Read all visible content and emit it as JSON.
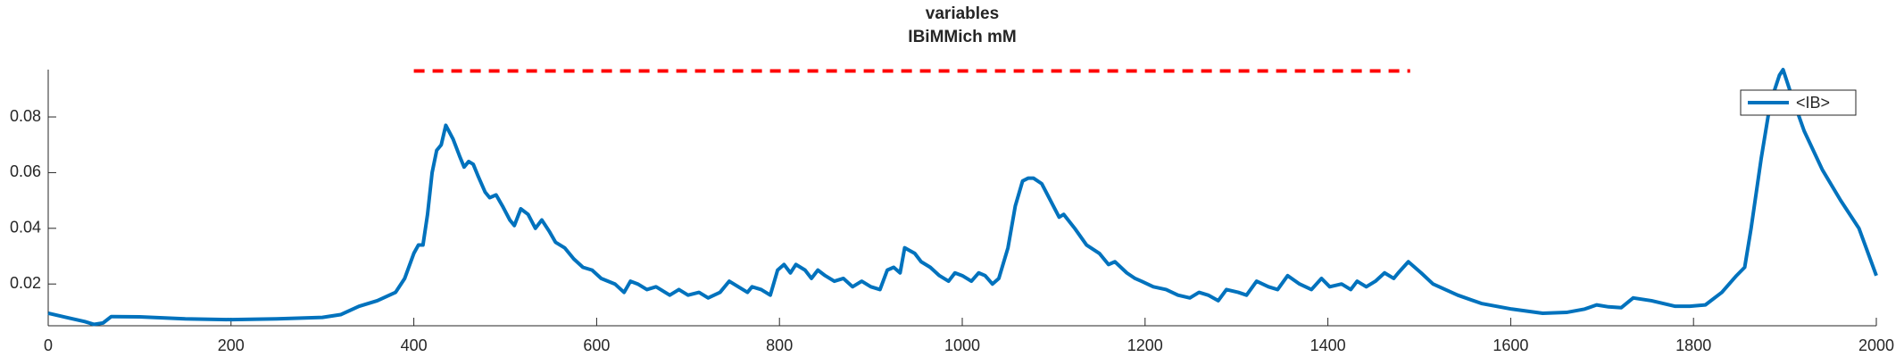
{
  "chart_data": {
    "type": "line",
    "title": "variables",
    "subtitle": "IBiMMich mM",
    "xlim": [
      0,
      2000
    ],
    "xticks": [
      0,
      200,
      400,
      600,
      800,
      1000,
      1200,
      1400,
      1600,
      1800,
      2000
    ],
    "ylim": [
      0.005,
      0.097
    ],
    "yticks": [
      0.02,
      0.04,
      0.06,
      0.08
    ],
    "grid": false,
    "legend_position": "upper right",
    "reference_line": {
      "x": [
        400,
        1490
      ],
      "values": [
        0.0965,
        0.0965
      ],
      "color": "#ff0000",
      "style": "dashed"
    },
    "series": [
      {
        "name": "<IB>",
        "color": "#0072bd",
        "x": [
          0,
          20,
          40,
          50,
          60,
          69,
          100,
          150,
          200,
          250,
          300,
          320,
          340,
          360,
          380,
          390,
          400,
          405,
          410,
          415,
          420,
          425,
          430,
          435,
          443,
          450,
          455,
          460,
          465,
          470,
          478,
          483,
          490,
          497,
          505,
          510,
          517,
          525,
          533,
          540,
          548,
          555,
          565,
          575,
          585,
          595,
          605,
          620,
          630,
          637,
          645,
          655,
          665,
          680,
          690,
          700,
          712,
          722,
          735,
          745,
          755,
          765,
          770,
          780,
          790,
          798,
          805,
          812,
          818,
          828,
          835,
          842,
          850,
          860,
          870,
          880,
          890,
          900,
          910,
          918,
          925,
          932,
          937,
          948,
          955,
          965,
          975,
          985,
          992,
          1000,
          1010,
          1018,
          1025,
          1033,
          1040,
          1050,
          1058,
          1066,
          1072,
          1078,
          1087,
          1106,
          1111,
          1123,
          1136,
          1150,
          1160,
          1167,
          1180,
          1189,
          1196,
          1209,
          1223,
          1236,
          1249,
          1259,
          1269,
          1280,
          1289,
          1302,
          1311,
          1322,
          1335,
          1345,
          1356,
          1369,
          1382,
          1393,
          1402,
          1415,
          1425,
          1432,
          1442,
          1452,
          1462,
          1472,
          1477,
          1488,
          1502,
          1515,
          1542,
          1568,
          1601,
          1635,
          1661,
          1681,
          1694,
          1707,
          1721,
          1734,
          1754,
          1780,
          1796,
          1813,
          1831,
          1847,
          1856,
          1863,
          1874,
          1884,
          1894,
          1898,
          1907,
          1921,
          1941,
          1961,
          1981,
          2000
        ],
        "values": [
          0.0095,
          0.008,
          0.0065,
          0.0055,
          0.006,
          0.0083,
          0.0082,
          0.0075,
          0.0072,
          0.0075,
          0.008,
          0.009,
          0.012,
          0.014,
          0.017,
          0.022,
          0.031,
          0.034,
          0.034,
          0.045,
          0.06,
          0.068,
          0.07,
          0.077,
          0.072,
          0.066,
          0.062,
          0.064,
          0.063,
          0.059,
          0.053,
          0.051,
          0.052,
          0.048,
          0.043,
          0.041,
          0.047,
          0.045,
          0.04,
          0.043,
          0.039,
          0.035,
          0.033,
          0.029,
          0.026,
          0.025,
          0.022,
          0.02,
          0.017,
          0.021,
          0.02,
          0.018,
          0.019,
          0.016,
          0.018,
          0.016,
          0.017,
          0.015,
          0.017,
          0.021,
          0.019,
          0.017,
          0.019,
          0.018,
          0.016,
          0.025,
          0.027,
          0.024,
          0.027,
          0.025,
          0.022,
          0.025,
          0.023,
          0.021,
          0.022,
          0.019,
          0.021,
          0.019,
          0.018,
          0.025,
          0.026,
          0.024,
          0.033,
          0.031,
          0.028,
          0.026,
          0.023,
          0.021,
          0.024,
          0.023,
          0.021,
          0.024,
          0.023,
          0.02,
          0.022,
          0.033,
          0.048,
          0.057,
          0.058,
          0.058,
          0.056,
          0.044,
          0.045,
          0.04,
          0.034,
          0.031,
          0.027,
          0.028,
          0.024,
          0.022,
          0.021,
          0.019,
          0.018,
          0.016,
          0.015,
          0.017,
          0.016,
          0.014,
          0.018,
          0.017,
          0.016,
          0.021,
          0.019,
          0.018,
          0.023,
          0.02,
          0.018,
          0.022,
          0.019,
          0.02,
          0.018,
          0.021,
          0.019,
          0.021,
          0.024,
          0.022,
          0.024,
          0.028,
          0.024,
          0.02,
          0.016,
          0.013,
          0.011,
          0.0095,
          0.0098,
          0.011,
          0.0125,
          0.0118,
          0.0115,
          0.015,
          0.014,
          0.012,
          0.012,
          0.0125,
          0.017,
          0.023,
          0.026,
          0.04,
          0.065,
          0.085,
          0.095,
          0.097,
          0.088,
          0.075,
          0.061,
          0.05,
          0.04,
          0.023
        ]
      }
    ]
  }
}
